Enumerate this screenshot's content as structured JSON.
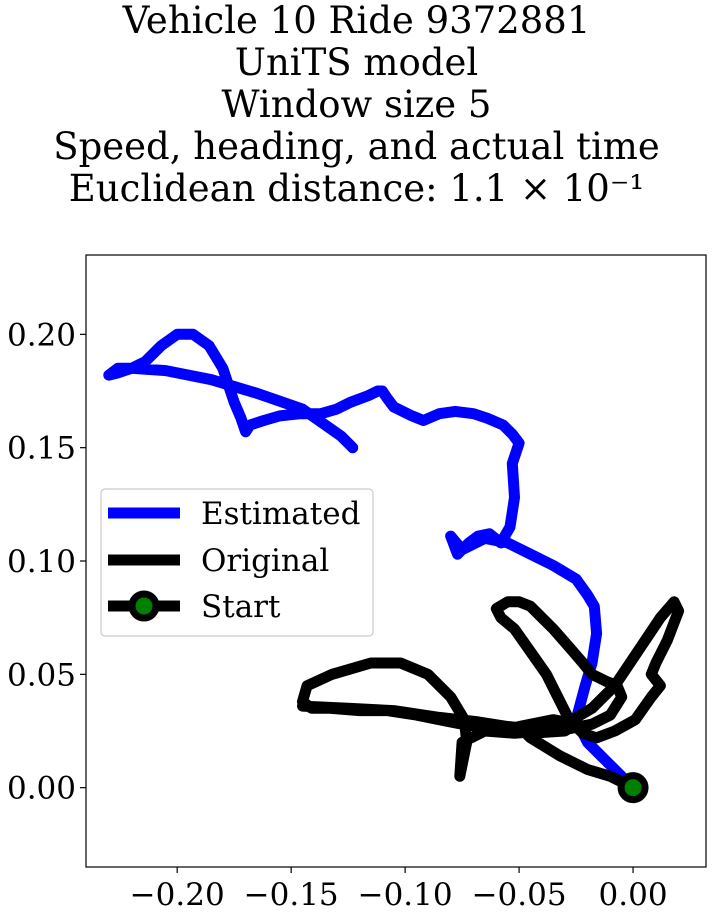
{
  "chart_data": {
    "type": "line",
    "title_lines": [
      "Vehicle 10 Ride 9372881",
      "UniTS model",
      "Window size 5",
      "Speed, heading, and actual time",
      "Euclidean distance: 1.1 × 10⁻¹"
    ],
    "xlim": [
      -0.24,
      0.032
    ],
    "ylim": [
      -0.035,
      0.235
    ],
    "xticks": [
      -0.2,
      -0.15,
      -0.1,
      -0.05,
      0.0
    ],
    "xtick_labels": [
      "−0.20",
      "−0.15",
      "−0.10",
      "−0.05",
      "0.00"
    ],
    "yticks": [
      0.0,
      0.05,
      0.1,
      0.15,
      0.2
    ],
    "ytick_labels": [
      "0.00",
      "0.05",
      "0.10",
      "0.15",
      "0.20"
    ],
    "grid": false,
    "legend": {
      "placement": "center-left",
      "entries": [
        "Estimated",
        "Original",
        "Start"
      ]
    },
    "series": [
      {
        "name": "Estimated",
        "color": "#0000ff",
        "x": [
          0.0,
          -0.012,
          -0.02,
          -0.025,
          -0.021,
          -0.018,
          -0.016,
          -0.017,
          -0.02,
          -0.025,
          -0.035,
          -0.045,
          -0.055,
          -0.065,
          -0.075,
          -0.08,
          -0.077,
          -0.072,
          -0.068,
          -0.063,
          -0.058,
          -0.054,
          -0.052,
          -0.053,
          -0.05,
          -0.053,
          -0.057,
          -0.064,
          -0.07,
          -0.078,
          -0.085,
          -0.092,
          -0.097,
          -0.105,
          -0.108,
          -0.11,
          -0.112,
          -0.116,
          -0.124,
          -0.13,
          -0.137,
          -0.146,
          -0.155,
          -0.162,
          -0.168,
          -0.17,
          -0.172,
          -0.175,
          -0.18,
          -0.186,
          -0.193,
          -0.2,
          -0.207,
          -0.214,
          -0.22,
          -0.226,
          -0.23,
          -0.226,
          -0.22,
          -0.205,
          -0.185,
          -0.165,
          -0.145,
          -0.135,
          -0.128,
          -0.123
        ],
        "y": [
          0.0,
          0.012,
          0.02,
          0.03,
          0.045,
          0.055,
          0.068,
          0.08,
          0.085,
          0.092,
          0.098,
          0.103,
          0.108,
          0.11,
          0.105,
          0.111,
          0.103,
          0.108,
          0.111,
          0.112,
          0.108,
          0.115,
          0.128,
          0.143,
          0.152,
          0.156,
          0.16,
          0.163,
          0.165,
          0.166,
          0.165,
          0.162,
          0.164,
          0.168,
          0.172,
          0.175,
          0.175,
          0.173,
          0.17,
          0.167,
          0.165,
          0.165,
          0.164,
          0.162,
          0.16,
          0.157,
          0.163,
          0.17,
          0.185,
          0.195,
          0.2,
          0.2,
          0.195,
          0.188,
          0.185,
          0.183,
          0.182,
          0.185,
          0.185,
          0.184,
          0.18,
          0.174,
          0.167,
          0.16,
          0.155,
          0.15
        ]
      },
      {
        "name": "Original",
        "color": "#000000",
        "x": [
          0.0,
          -0.01,
          -0.02,
          -0.032,
          -0.045,
          -0.05,
          -0.035,
          -0.025,
          -0.03,
          -0.045,
          -0.06,
          -0.075,
          -0.085,
          -0.095,
          -0.108,
          -0.12,
          -0.133,
          -0.141,
          -0.145,
          -0.143,
          -0.132,
          -0.115,
          -0.102,
          -0.09,
          -0.08,
          -0.074,
          -0.073,
          -0.075,
          -0.076,
          -0.075,
          -0.065,
          -0.052,
          -0.04,
          -0.03,
          -0.018,
          -0.008,
          0.002,
          0.012,
          0.018,
          0.02,
          0.015,
          0.01,
          0.008,
          0.012,
          0.008,
          0.001,
          -0.008,
          -0.016,
          -0.022,
          -0.028,
          -0.033,
          -0.038,
          -0.045,
          -0.052,
          -0.058,
          -0.06,
          -0.055,
          -0.05,
          -0.045,
          -0.04,
          -0.035,
          -0.028,
          -0.022,
          -0.018,
          -0.012,
          -0.007,
          -0.005,
          -0.01,
          -0.018,
          -0.028,
          -0.038,
          -0.045,
          -0.055,
          -0.068,
          -0.085,
          -0.105,
          -0.125,
          -0.145
        ],
        "y": [
          0.0,
          0.005,
          0.008,
          0.014,
          0.022,
          0.027,
          0.03,
          0.028,
          0.025,
          0.024,
          0.026,
          0.028,
          0.03,
          0.032,
          0.034,
          0.034,
          0.035,
          0.035,
          0.038,
          0.045,
          0.05,
          0.055,
          0.055,
          0.05,
          0.04,
          0.03,
          0.02,
          0.01,
          0.005,
          0.02,
          0.025,
          0.024,
          0.025,
          0.028,
          0.035,
          0.045,
          0.06,
          0.075,
          0.082,
          0.078,
          0.065,
          0.055,
          0.05,
          0.045,
          0.04,
          0.03,
          0.025,
          0.022,
          0.024,
          0.03,
          0.04,
          0.05,
          0.06,
          0.07,
          0.075,
          0.079,
          0.082,
          0.082,
          0.08,
          0.075,
          0.07,
          0.062,
          0.055,
          0.05,
          0.047,
          0.045,
          0.04,
          0.032,
          0.028,
          0.026,
          0.025,
          0.026,
          0.027,
          0.029,
          0.031,
          0.034,
          0.035,
          0.036
        ]
      }
    ],
    "start_point": {
      "x": 0.0,
      "y": 0.0,
      "fill": "#008000",
      "edge": "#000000"
    }
  }
}
